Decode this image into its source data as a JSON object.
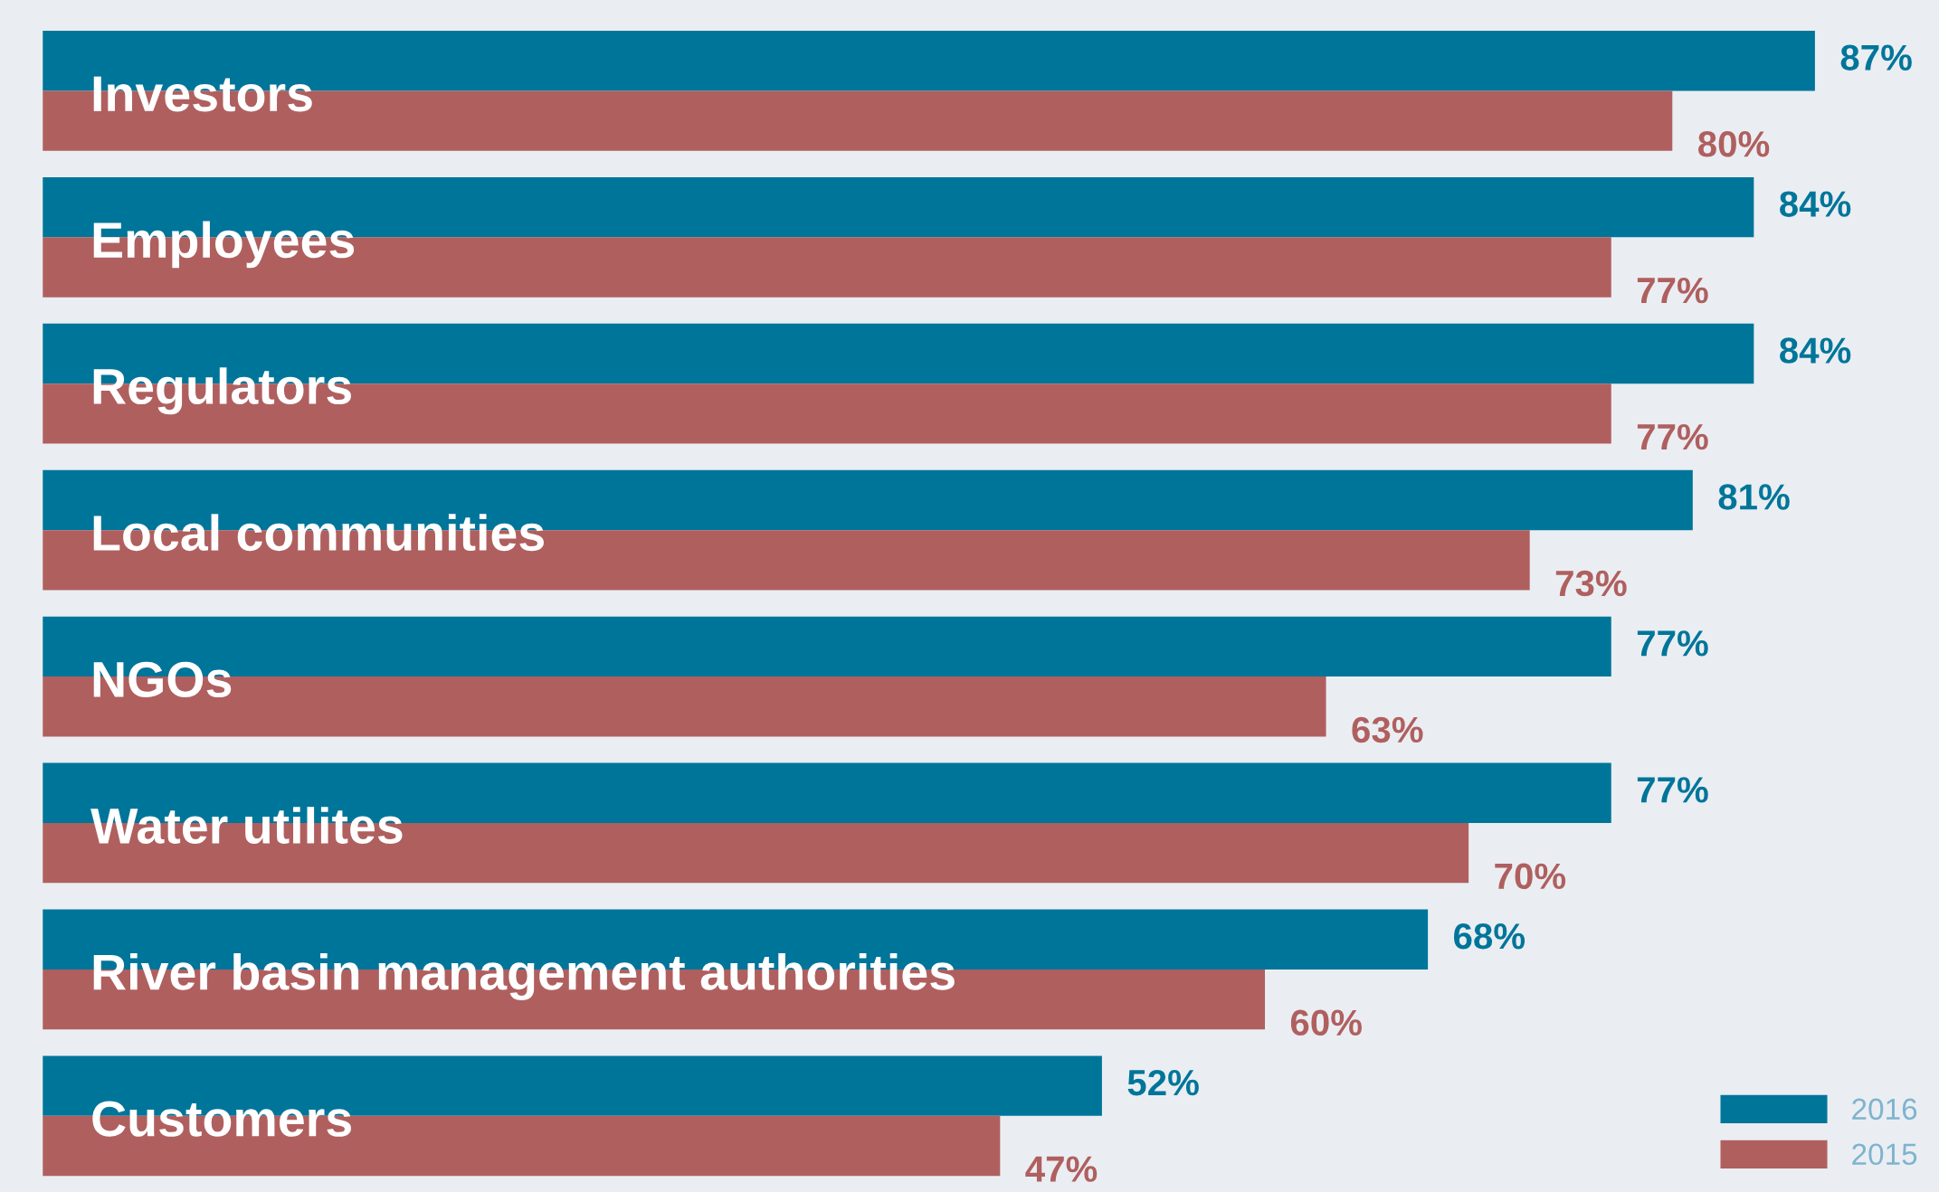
{
  "chart_data": {
    "type": "bar",
    "orientation": "horizontal",
    "categories": [
      "Investors",
      "Employees",
      "Regulators",
      "Local communities",
      "NGOs",
      "Water utilites",
      "River basin management authorities",
      "Customers"
    ],
    "series": [
      {
        "name": "2016",
        "color": "#00759a",
        "values": [
          87,
          84,
          84,
          81,
          77,
          77,
          68,
          52
        ],
        "value_labels": [
          "87%",
          "84%",
          "84%",
          "81%",
          "77%",
          "77%",
          "68%",
          "52%"
        ]
      },
      {
        "name": "2015",
        "color": "#b05f5f",
        "values": [
          80,
          77,
          77,
          73,
          63,
          70,
          60,
          47
        ],
        "value_labels": [
          "80%",
          "77%",
          "77%",
          "73%",
          "63%",
          "70%",
          "60%",
          "47%"
        ]
      }
    ],
    "legend": "bottom right",
    "grid": false,
    "tick_labels": false
  }
}
